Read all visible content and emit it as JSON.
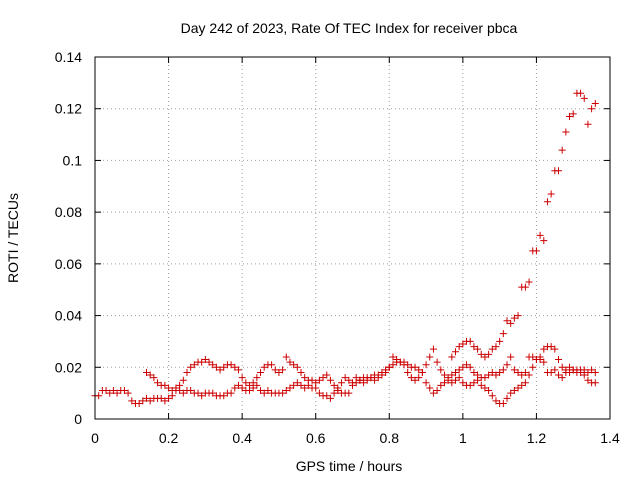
{
  "chart_data": {
    "type": "scatter",
    "title": "Day 242 of 2023, Rate Of TEC Index for receiver pbca",
    "xlabel": "GPS time / hours",
    "ylabel": "ROTI / TECUs",
    "xlim": [
      0,
      1.4
    ],
    "ylim": [
      0,
      0.14
    ],
    "xticks": [
      0,
      0.2,
      0.4,
      0.6,
      0.8,
      1,
      1.2,
      1.4
    ],
    "xtick_labels": [
      "0",
      "0.2",
      "0.4",
      "0.6",
      "0.8",
      "1",
      "1.2",
      "1.4"
    ],
    "yticks": [
      0,
      0.02,
      0.04,
      0.06,
      0.08,
      0.1,
      0.12,
      0.14
    ],
    "ytick_labels": [
      "0",
      "0.02",
      "0.04",
      "0.06",
      "0.08",
      "0.1",
      "0.12",
      "0.14"
    ],
    "grid": true,
    "marker": "+",
    "color": "#cc0000",
    "series": [
      {
        "x": [
          0.0,
          0.01,
          0.02,
          0.03,
          0.04,
          0.05,
          0.06,
          0.07,
          0.08,
          0.09,
          0.1,
          0.11,
          0.12,
          0.13,
          0.14,
          0.15,
          0.16,
          0.17,
          0.18,
          0.19,
          0.2,
          0.21,
          0.22,
          0.23,
          0.24,
          0.25,
          0.26,
          0.27,
          0.28,
          0.29,
          0.3,
          0.31,
          0.32,
          0.33,
          0.34,
          0.35,
          0.36,
          0.37,
          0.38,
          0.39,
          0.4,
          0.41,
          0.42,
          0.43,
          0.44,
          0.45,
          0.46,
          0.47,
          0.48,
          0.49,
          0.5,
          0.51,
          0.52,
          0.53,
          0.54,
          0.55,
          0.56,
          0.57,
          0.58,
          0.59,
          0.6,
          0.61,
          0.62,
          0.63,
          0.64,
          0.65,
          0.66,
          0.67,
          0.68,
          0.69,
          0.7,
          0.71,
          0.72,
          0.73,
          0.74,
          0.75,
          0.76,
          0.77,
          0.78,
          0.79,
          0.8,
          0.81,
          0.82,
          0.83,
          0.84,
          0.85,
          0.86,
          0.87,
          0.88,
          0.89,
          0.9,
          0.91,
          0.92,
          0.93,
          0.94,
          0.95,
          0.96,
          0.97,
          0.98,
          0.99,
          1.0,
          1.01,
          1.02,
          1.03,
          1.04,
          1.05,
          1.06,
          1.07,
          1.08,
          1.09,
          1.1,
          1.11,
          1.12,
          1.13,
          1.14,
          1.15,
          1.16,
          1.17,
          1.18,
          1.19,
          1.2,
          1.21,
          1.22,
          1.23,
          1.24,
          1.25,
          1.26,
          1.27,
          1.28,
          1.29,
          1.3,
          1.31,
          1.32,
          1.33,
          1.34,
          1.35,
          1.36
        ],
        "y": [
          0.009,
          0.009,
          0.011,
          0.011,
          0.01,
          0.011,
          0.01,
          0.011,
          0.011,
          0.01,
          0.007,
          0.006,
          0.006,
          0.007,
          0.008,
          0.007,
          0.008,
          0.008,
          0.008,
          0.007,
          0.008,
          0.009,
          0.011,
          0.011,
          0.01,
          0.011,
          0.011,
          0.01,
          0.01,
          0.009,
          0.01,
          0.01,
          0.01,
          0.009,
          0.009,
          0.009,
          0.01,
          0.01,
          0.012,
          0.013,
          0.012,
          0.011,
          0.011,
          0.012,
          0.013,
          0.011,
          0.01,
          0.011,
          0.01,
          0.01,
          0.01,
          0.01,
          0.011,
          0.012,
          0.013,
          0.014,
          0.013,
          0.012,
          0.013,
          0.012,
          0.012,
          0.01,
          0.009,
          0.009,
          0.008,
          0.01,
          0.011,
          0.01,
          0.01,
          0.01,
          0.013,
          0.014,
          0.015,
          0.016,
          0.016,
          0.016,
          0.017,
          0.017,
          0.018,
          0.019,
          0.02,
          0.021,
          0.022,
          0.022,
          0.022,
          0.021,
          0.02,
          0.02,
          0.019,
          0.018,
          0.014,
          0.012,
          0.01,
          0.011,
          0.013,
          0.014,
          0.015,
          0.014,
          0.015,
          0.016,
          0.014,
          0.013,
          0.013,
          0.014,
          0.015,
          0.013,
          0.012,
          0.011,
          0.009,
          0.007,
          0.006,
          0.006,
          0.008,
          0.01,
          0.011,
          0.012,
          0.013,
          0.014,
          0.017,
          0.02,
          0.023,
          0.024,
          0.027,
          0.028,
          0.028,
          0.027,
          0.023,
          0.02,
          0.019,
          0.018,
          0.019,
          0.019,
          0.018,
          0.017,
          0.015,
          0.014,
          0.014
        ]
      },
      {
        "x": [
          0.14,
          0.15,
          0.16,
          0.17,
          0.18,
          0.19,
          0.2,
          0.21,
          0.22,
          0.23,
          0.24,
          0.25,
          0.26,
          0.27,
          0.28,
          0.29,
          0.3,
          0.31,
          0.32,
          0.33,
          0.34,
          0.35,
          0.36,
          0.37,
          0.38,
          0.39,
          0.4,
          0.41,
          0.42,
          0.43,
          0.44,
          0.45,
          0.46,
          0.47,
          0.48,
          0.49,
          0.5,
          0.51,
          0.52,
          0.53,
          0.54,
          0.55,
          0.56,
          0.57,
          0.58,
          0.59,
          0.6,
          0.61,
          0.62,
          0.63,
          0.64,
          0.65,
          0.66,
          0.67,
          0.68,
          0.69,
          0.7,
          0.71,
          0.72,
          0.73,
          0.74,
          0.75,
          0.76,
          0.77,
          0.78,
          0.79,
          0.8,
          0.81,
          0.82,
          0.83,
          0.84,
          0.85,
          0.86,
          0.87,
          0.88,
          0.89,
          0.9,
          0.91,
          0.92,
          0.93,
          0.94,
          0.95,
          0.96,
          0.97,
          0.98,
          0.99,
          1.0,
          1.01,
          1.02,
          1.03,
          1.04,
          1.05,
          1.06,
          1.07,
          1.08,
          1.09,
          1.1,
          1.11,
          1.12,
          1.13,
          1.14,
          1.15,
          1.16,
          1.17,
          1.18,
          1.19,
          1.2,
          1.21,
          1.22,
          1.23,
          1.24,
          1.25,
          1.26,
          1.27,
          1.28,
          1.29,
          1.3,
          1.31,
          1.32,
          1.33,
          1.34,
          1.35,
          1.36
        ],
        "y": [
          0.018,
          0.017,
          0.016,
          0.014,
          0.013,
          0.013,
          0.012,
          0.011,
          0.012,
          0.013,
          0.015,
          0.018,
          0.02,
          0.021,
          0.022,
          0.022,
          0.023,
          0.022,
          0.021,
          0.02,
          0.019,
          0.02,
          0.021,
          0.021,
          0.02,
          0.019,
          0.016,
          0.014,
          0.013,
          0.014,
          0.016,
          0.018,
          0.02,
          0.021,
          0.021,
          0.019,
          0.018,
          0.019,
          0.024,
          0.022,
          0.021,
          0.02,
          0.018,
          0.016,
          0.015,
          0.015,
          0.014,
          0.015,
          0.016,
          0.017,
          0.015,
          0.013,
          0.012,
          0.014,
          0.016,
          0.015,
          0.014,
          0.016,
          0.015,
          0.014,
          0.015,
          0.016,
          0.015,
          0.016,
          0.017,
          0.018,
          0.02,
          0.024,
          0.023,
          0.022,
          0.021,
          0.018,
          0.016,
          0.015,
          0.016,
          0.018,
          0.021,
          0.024,
          0.027,
          0.022,
          0.019,
          0.017,
          0.016,
          0.017,
          0.018,
          0.019,
          0.02,
          0.021,
          0.02,
          0.018,
          0.017,
          0.016,
          0.016,
          0.017,
          0.018,
          0.017,
          0.018,
          0.019,
          0.021,
          0.024,
          0.019,
          0.018,
          0.017,
          0.018,
          0.024,
          0.024,
          0.023,
          0.023,
          0.022,
          0.018,
          0.018,
          0.019,
          0.017,
          0.016,
          0.018,
          0.02,
          0.019,
          0.018,
          0.019,
          0.019,
          0.018,
          0.019,
          0.018
        ]
      },
      {
        "x": [
          0.97,
          0.98,
          0.99,
          1.0,
          1.01,
          1.02,
          1.03,
          1.04,
          1.05,
          1.06,
          1.07,
          1.08,
          1.09,
          1.1,
          1.11,
          1.12,
          1.13,
          1.14,
          1.15,
          1.16,
          1.17,
          1.18,
          1.19,
          1.2,
          1.21,
          1.22,
          1.23,
          1.24,
          1.25,
          1.26,
          1.27,
          1.28,
          1.29,
          1.3,
          1.31,
          1.32,
          1.33,
          1.34,
          1.35,
          1.36
        ],
        "y": [
          0.024,
          0.026,
          0.028,
          0.029,
          0.03,
          0.03,
          0.028,
          0.027,
          0.025,
          0.024,
          0.025,
          0.027,
          0.028,
          0.03,
          0.033,
          0.038,
          0.037,
          0.039,
          0.04,
          0.051,
          0.051,
          0.053,
          0.065,
          0.065,
          0.071,
          0.069,
          0.084,
          0.087,
          0.096,
          0.096,
          0.104,
          0.111,
          0.117,
          0.118,
          0.126,
          0.126,
          0.124,
          0.114,
          0.12,
          0.122
        ]
      }
    ]
  }
}
